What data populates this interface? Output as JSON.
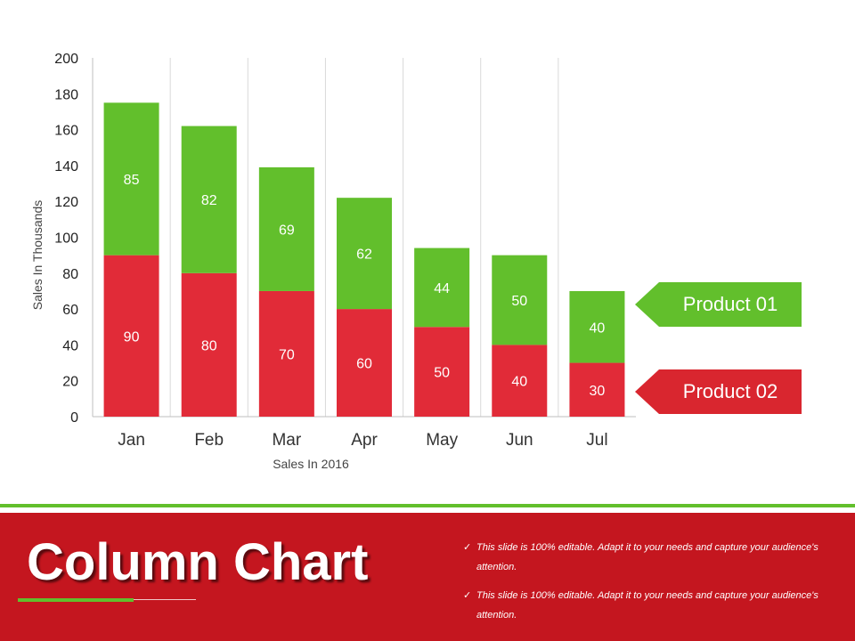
{
  "chart_data": {
    "type": "bar",
    "stacked": true,
    "categories": [
      "Jan",
      "Feb",
      "Mar",
      "Apr",
      "May",
      "Jun",
      "Jul"
    ],
    "series": [
      {
        "name": "Product 02",
        "values": [
          90,
          80,
          70,
          60,
          50,
          40,
          30
        ],
        "color": "#e12b38"
      },
      {
        "name": "Product 01",
        "values": [
          85,
          82,
          69,
          62,
          44,
          50,
          40
        ],
        "color": "#62bf2c"
      }
    ],
    "title": "",
    "xlabel": "Sales In 2016",
    "ylabel": "Sales In Thousands",
    "ylim": [
      0,
      200
    ],
    "yticks": [
      0,
      20,
      40,
      60,
      80,
      100,
      120,
      140,
      160,
      180,
      200
    ],
    "grid": "vertical",
    "legend_placement": "right"
  },
  "legend": {
    "product01": "Product 01",
    "product02": "Product 02"
  },
  "footer": {
    "title": "Column Chart",
    "notes": [
      "This slide is 100% editable. Adapt it to your needs and capture your audience's attention.",
      "This slide is 100% editable. Adapt it to your needs and capture your audience's attention."
    ],
    "check_glyph": "✓"
  },
  "colors": {
    "footer_bg": "#c4161f",
    "accent_green": "#62bf2c",
    "bar_red": "#e12b38"
  }
}
